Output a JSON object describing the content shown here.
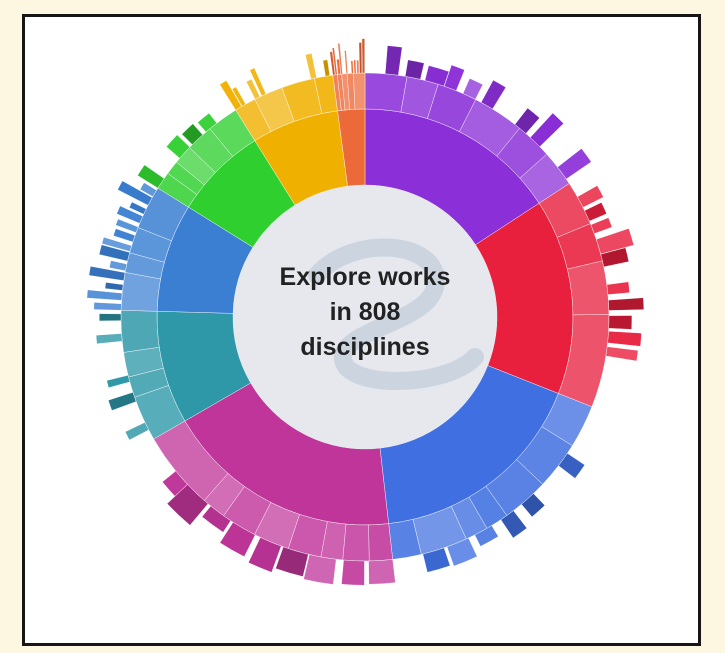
{
  "center_text": {
    "line1": "Explore works",
    "line2": "in 808",
    "line3": "disciplines"
  },
  "colors": {
    "page_background": "#fdf6e0",
    "frame_border": "#161616",
    "center_fill": "#e6e8ee",
    "center_logo": "#b9c7d6"
  },
  "chart_data": {
    "type": "sunburst",
    "title": "",
    "total_disciplines": 808,
    "legend": "none",
    "rings": [
      "inner",
      "middle",
      "outer"
    ],
    "categories": [
      {
        "color": "#8b2fd8",
        "share": 0.135
      },
      {
        "color": "#e8203e",
        "share": 0.13
      },
      {
        "color": "#3f6fe0",
        "share": 0.147
      },
      {
        "color": "#c0359a",
        "share": 0.158
      },
      {
        "color": "#2e98a8",
        "share": 0.075
      },
      {
        "color": "#3a7fd2",
        "share": 0.072
      },
      {
        "color": "#2fcf2f",
        "share": 0.062
      },
      {
        "color": "#f0b000",
        "share": 0.058
      },
      {
        "color": "#ec6a3a",
        "share": 0.018
      }
    ]
  }
}
